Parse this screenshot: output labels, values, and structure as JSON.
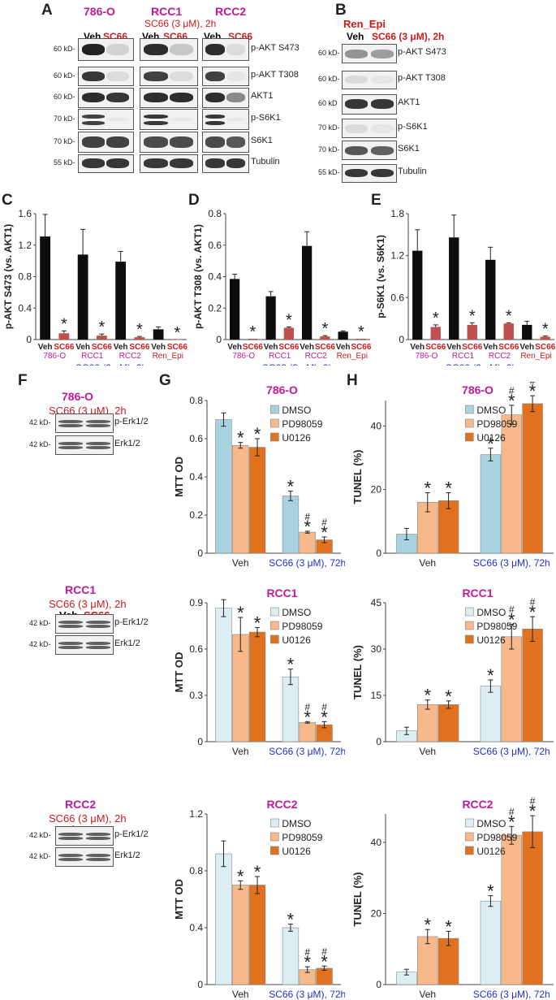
{
  "panels": {
    "A": {
      "letter": "A",
      "cell_lines": [
        "786-O",
        "RCC1",
        "RCC2"
      ],
      "treatment": "SC66 (3 μM), 2h",
      "lanes": [
        "Veh",
        "SC66"
      ],
      "rows": [
        {
          "kd": "60 kD-",
          "protein": "p-AKT S473"
        },
        {
          "kd": "60 kD-",
          "protein": "p-AKT T308"
        },
        {
          "kd": "60 kD-",
          "protein": "AKT1"
        },
        {
          "kd": "70 kD-",
          "protein": "p-S6K1"
        },
        {
          "kd": "70 kD-",
          "protein": "S6K1"
        },
        {
          "kd": "55 kD-",
          "protein": "Tubulin"
        }
      ]
    },
    "B": {
      "letter": "B",
      "cell_line": "Ren_Epi",
      "lanes": [
        "Veh",
        "SC66 (3 μM), 2h"
      ],
      "rows": [
        {
          "kd": "60 kD-",
          "protein": "p-AKT S473"
        },
        {
          "kd": "60 kD-",
          "protein": "p-AKT T308"
        },
        {
          "kd": "60 kD",
          "protein": "AKT1"
        },
        {
          "kd": "70 kD-",
          "protein": "p-S6K1"
        },
        {
          "kd": "70 kD-",
          "protein": "S6K1"
        },
        {
          "kd": "55 kD-",
          "protein": "Tubulin"
        }
      ]
    },
    "C": {
      "letter": "C"
    },
    "D": {
      "letter": "D"
    },
    "E": {
      "letter": "E"
    },
    "F": {
      "letter": "F",
      "blocks": [
        {
          "cell_line": "786-O",
          "treatment": "SC66 (3 μM), 2h",
          "lanes": [
            "Veh",
            "SC66"
          ],
          "rows": [
            {
              "kd": "42 kD-",
              "protein": "p-Erk1/2"
            },
            {
              "kd": "42 kD-",
              "protein": "Erk1/2"
            }
          ]
        },
        {
          "cell_line": "RCC1",
          "treatment": "SC66 (3 μM), 2h",
          "lanes": [
            "Veh",
            "SC66"
          ],
          "rows": [
            {
              "kd": "42 kD-",
              "protein": "p-Erk1/2"
            },
            {
              "kd": "42 kD-",
              "protein": "Erk1/2"
            }
          ]
        },
        {
          "cell_line": "RCC2",
          "treatment": "SC66 (3 μM), 2h",
          "lanes": [
            "Veh",
            "SC66"
          ],
          "rows": [
            {
              "kd": "42 kD-",
              "protein": "p-Erk1/2"
            },
            {
              "kd": "42 kD-",
              "protein": "Erk1/2"
            }
          ]
        }
      ]
    },
    "G": {
      "letter": "G"
    },
    "H": {
      "letter": "H"
    }
  },
  "colors": {
    "black_bar": "#0d0d0d",
    "red_bar": "#c0504d",
    "dmso_786": "#a8d2df",
    "dmso_rcc": "#dcedf4",
    "pd": "#f7b98a",
    "u0126": "#e0721f",
    "magenta": "#c2189b",
    "red_text": "#cc1a1a",
    "blue_text": "#1f2fd6"
  },
  "chart_data": [
    {
      "id": "C",
      "type": "bar",
      "ylabel": "p-AKT S473 (vs. AKT1)",
      "ylim": [
        0,
        1.6
      ],
      "yticks": [
        "0",
        "0.4",
        "0.8",
        "1.2",
        "1.6"
      ],
      "bar_labels": [
        "Veh",
        "SC66",
        "Veh",
        "SC66",
        "Veh",
        "SC66",
        "Veh",
        "SC66"
      ],
      "values": [
        1.31,
        0.08,
        1.08,
        0.05,
        0.99,
        0.03,
        0.13,
        0.0
      ],
      "errors": [
        0.28,
        0.03,
        0.32,
        0.02,
        0.13,
        0.01,
        0.03,
        0.0
      ],
      "stars": [
        false,
        true,
        false,
        true,
        false,
        true,
        false,
        true
      ],
      "groups": [
        "786-O",
        "RCC1",
        "RCC2",
        "Ren_Epi"
      ],
      "xlabel": "SC66 (3 μM), 2h"
    },
    {
      "id": "D",
      "type": "bar",
      "ylabel": "p-AKT T308 (vs. AKT1)",
      "ylim": [
        0,
        0.8
      ],
      "yticks": [
        "0",
        "0.2",
        "0.4",
        "0.6",
        "0.8"
      ],
      "bar_labels": [
        "Veh",
        "SC66",
        "Veh",
        "SC66",
        "Veh",
        "SC66",
        "Veh",
        "SC66"
      ],
      "values": [
        0.385,
        0.005,
        0.275,
        0.075,
        0.595,
        0.02,
        0.05,
        0.005
      ],
      "errors": [
        0.03,
        0.0,
        0.03,
        0.005,
        0.09,
        0.005,
        0.005,
        0.0
      ],
      "stars": [
        false,
        true,
        false,
        true,
        false,
        true,
        false,
        true
      ],
      "groups": [
        "786-O",
        "RCC1",
        "RCC2",
        "Ren_Epi"
      ],
      "xlabel": "SC66 (3 μM), 2h"
    },
    {
      "id": "E",
      "type": "bar",
      "ylabel": "p-S6K1 (vs. S6K1)",
      "ylim": [
        0,
        1.8
      ],
      "yticks": [
        "0",
        "0.6",
        "1.2",
        "1.8"
      ],
      "bar_labels": [
        "Veh",
        "SC66",
        "Veh",
        "SC66",
        "Veh",
        "SC66",
        "Veh",
        "SC66"
      ],
      "values": [
        1.27,
        0.18,
        1.46,
        0.21,
        1.14,
        0.23,
        0.21,
        0.04
      ],
      "errors": [
        0.3,
        0.03,
        0.32,
        0.03,
        0.18,
        0.01,
        0.05,
        0.01
      ],
      "stars": [
        false,
        true,
        false,
        true,
        false,
        true,
        false,
        true
      ],
      "groups": [
        "786-O",
        "RCC1",
        "RCC2",
        "Ren_Epi"
      ],
      "xlabel": "SC66 (3 μM), 2h"
    },
    {
      "id": "G1",
      "type": "bar",
      "title": "786-O",
      "ylabel": "MTT OD",
      "ylim": [
        0,
        0.8
      ],
      "yticks": [
        "0",
        "0.2",
        "0.4",
        "0.6",
        "0.8"
      ],
      "categories": [
        "Veh",
        "SC66 (3 μM), 72h"
      ],
      "series": [
        {
          "name": "DMSO",
          "values": [
            0.7,
            0.3
          ],
          "errors": [
            0.035,
            0.025
          ],
          "stars": [
            false,
            true
          ],
          "hash": [
            false,
            false
          ]
        },
        {
          "name": "PD98059",
          "values": [
            0.565,
            0.11
          ],
          "errors": [
            0.015,
            0.005
          ],
          "stars": [
            true,
            true
          ],
          "hash": [
            false,
            true
          ]
        },
        {
          "name": "U0126",
          "values": [
            0.555,
            0.07
          ],
          "errors": [
            0.045,
            0.015
          ],
          "stars": [
            true,
            true
          ],
          "hash": [
            false,
            true
          ]
        }
      ],
      "dmso_color": "#a8d2df"
    },
    {
      "id": "G2",
      "type": "bar",
      "title": "RCC1",
      "ylabel": "MTT OD",
      "ylim": [
        0,
        0.9
      ],
      "yticks": [
        "0",
        "0.3",
        "0.6",
        "0.9"
      ],
      "categories": [
        "Veh",
        "SC66 (3 μM), 72h"
      ],
      "series": [
        {
          "name": "DMSO",
          "values": [
            0.865,
            0.42
          ],
          "errors": [
            0.055,
            0.05
          ],
          "stars": [
            false,
            true
          ],
          "hash": [
            false,
            false
          ]
        },
        {
          "name": "PD98059",
          "values": [
            0.695,
            0.125
          ],
          "errors": [
            0.11,
            0.005
          ],
          "stars": [
            true,
            true
          ],
          "hash": [
            false,
            true
          ]
        },
        {
          "name": "U0126",
          "values": [
            0.71,
            0.11
          ],
          "errors": [
            0.03,
            0.02
          ],
          "stars": [
            true,
            true
          ],
          "hash": [
            false,
            true
          ]
        }
      ],
      "dmso_color": "#dcedf4"
    },
    {
      "id": "G3",
      "type": "bar",
      "title": "RCC2",
      "ylabel": "MTT OD",
      "ylim": [
        0,
        1.2
      ],
      "yticks": [
        "0",
        "0.4",
        "0.8",
        "1.2"
      ],
      "categories": [
        "Veh",
        "SC66 (3 μM), 72h"
      ],
      "series": [
        {
          "name": "DMSO",
          "values": [
            0.92,
            0.4
          ],
          "errors": [
            0.09,
            0.025
          ],
          "stars": [
            false,
            true
          ],
          "hash": [
            false,
            false
          ]
        },
        {
          "name": "PD98059",
          "values": [
            0.7,
            0.105
          ],
          "errors": [
            0.03,
            0.02
          ],
          "stars": [
            true,
            true
          ],
          "hash": [
            false,
            true
          ]
        },
        {
          "name": "U0126",
          "values": [
            0.7,
            0.115
          ],
          "errors": [
            0.06,
            0.015
          ],
          "stars": [
            true,
            true
          ],
          "hash": [
            false,
            true
          ]
        }
      ],
      "dmso_color": "#dcedf4"
    },
    {
      "id": "H1",
      "type": "bar",
      "title": "786-O",
      "ylabel": "TUNEL (%)",
      "ylim": [
        0,
        48
      ],
      "yticks": [
        "0",
        "20",
        "40"
      ],
      "categories": [
        "Veh",
        "SC66 (3 μM), 72h"
      ],
      "series": [
        {
          "name": "DMSO",
          "values": [
            6,
            31
          ],
          "errors": [
            1.8,
            2
          ],
          "stars": [
            false,
            true
          ],
          "hash": [
            false,
            false
          ]
        },
        {
          "name": "PD98059",
          "values": [
            16,
            43.5
          ],
          "errors": [
            3,
            3
          ],
          "stars": [
            true,
            true
          ],
          "hash": [
            false,
            true
          ]
        },
        {
          "name": "U0126",
          "values": [
            16.5,
            47
          ],
          "errors": [
            2.5,
            2.5
          ],
          "stars": [
            true,
            true
          ],
          "hash": [
            false,
            true
          ]
        }
      ],
      "dmso_color": "#a8d2df"
    },
    {
      "id": "H2",
      "type": "bar",
      "title": "RCC1",
      "ylabel": "TUNEL (%)",
      "ylim": [
        0,
        45
      ],
      "yticks": [
        "0",
        "15",
        "30",
        "45"
      ],
      "categories": [
        "Veh",
        "SC66 (3 μM), 72h"
      ],
      "series": [
        {
          "name": "DMSO",
          "values": [
            3.5,
            18
          ],
          "errors": [
            1.2,
            2
          ],
          "stars": [
            false,
            true
          ],
          "hash": [
            false,
            false
          ]
        },
        {
          "name": "PD98059",
          "values": [
            12,
            34
          ],
          "errors": [
            1.5,
            4
          ],
          "stars": [
            true,
            true
          ],
          "hash": [
            false,
            true
          ]
        },
        {
          "name": "U0126",
          "values": [
            12,
            36.5
          ],
          "errors": [
            1.2,
            4
          ],
          "stars": [
            true,
            true
          ],
          "hash": [
            false,
            true
          ]
        }
      ],
      "dmso_color": "#dcedf4"
    },
    {
      "id": "H3",
      "type": "bar",
      "title": "RCC2",
      "ylabel": "TUNEL (%)",
      "ylim": [
        0,
        48
      ],
      "yticks": [
        "0",
        "20",
        "40"
      ],
      "categories": [
        "Veh",
        "SC66 (3 μM), 72h"
      ],
      "series": [
        {
          "name": "DMSO",
          "values": [
            3.5,
            23.5
          ],
          "errors": [
            0.8,
            1.5
          ],
          "stars": [
            false,
            true
          ],
          "hash": [
            false,
            false
          ]
        },
        {
          "name": "PD98059",
          "values": [
            13.5,
            42
          ],
          "errors": [
            2,
            2.5
          ],
          "stars": [
            true,
            true
          ],
          "hash": [
            false,
            true
          ]
        },
        {
          "name": "U0126",
          "values": [
            13,
            43
          ],
          "errors": [
            2,
            4.5
          ],
          "stars": [
            true,
            true
          ],
          "hash": [
            false,
            true
          ]
        }
      ],
      "dmso_color": "#dcedf4"
    }
  ]
}
